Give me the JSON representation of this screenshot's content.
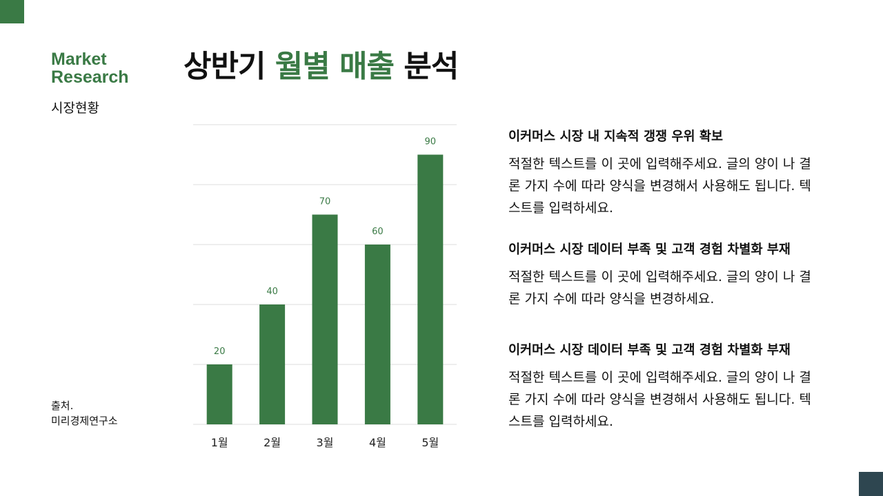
{
  "brand": {
    "line1": "Market",
    "line2": "Research",
    "subtitle": "시장현황"
  },
  "title": {
    "part1": "상반기 ",
    "part2": "월별 매출",
    "part3": " 분석"
  },
  "source": {
    "label": "출처.",
    "value": "미리경제연구소"
  },
  "colors": {
    "accent": "#3a7a45",
    "dark": "#2e4650"
  },
  "chart_data": {
    "type": "bar",
    "categories": [
      "1월",
      "2월",
      "3월",
      "4월",
      "5월"
    ],
    "values": [
      20,
      40,
      70,
      60,
      90
    ],
    "ylim": [
      0,
      100
    ],
    "grid": true,
    "data_labels": true,
    "color": "#3a7a45"
  },
  "blocks": [
    {
      "heading": "이커머스 시장 내 지속적 갱쟁 우위 확보",
      "body": "적절한 텍스트를 이 곳에 입력해주세요. 글의 양이 나 결론 가지 수에 따라 양식을 변경해서 사용해도 됩니다. 텍스트를 입력하세요."
    },
    {
      "heading": "이커머스 시장 데이터 부족 및 고객 경험 차별화 부재",
      "body": "적절한 텍스트를 이 곳에 입력해주세요. 글의 양이 나 결론 가지 수에 따라 양식을 변경하세요."
    },
    {
      "heading": "이커머스 시장 데이터 부족 및 고객 경험 차별화 부재",
      "body": "적절한 텍스트를 이 곳에 입력해주세요. 글의 양이 나 결론 가지 수에 따라 양식을 변경해서 사용해도 됩니다. 텍스트를 입력하세요."
    }
  ]
}
